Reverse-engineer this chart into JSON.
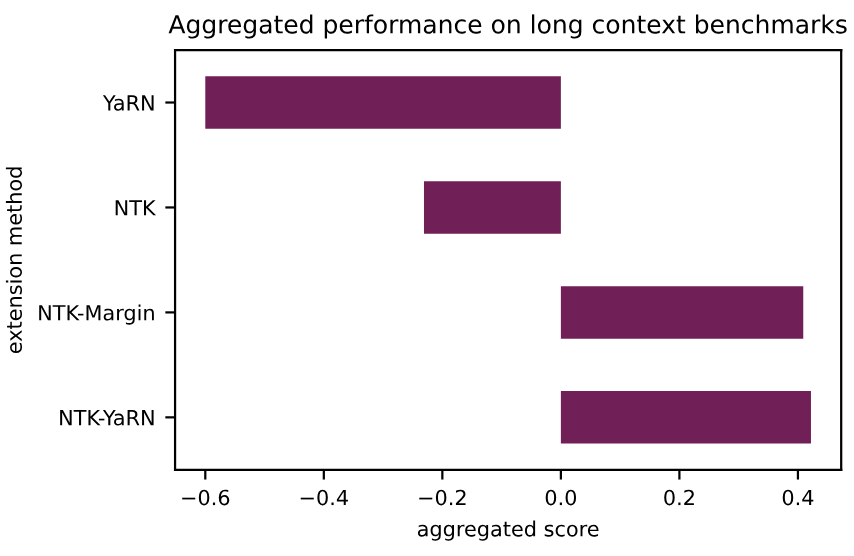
{
  "chart_data": {
    "type": "bar",
    "orientation": "horizontal",
    "title": "Aggregated performance on long context benchmarks",
    "xlabel": "aggregated score",
    "ylabel": "extension method",
    "categories": [
      "YaRN",
      "NTK",
      "NTK-Margin",
      "NTK-YaRN"
    ],
    "series": [
      {
        "color": "#701f57",
        "values": [
          -0.6,
          -0.231,
          0.409,
          0.422
        ]
      }
    ],
    "xlim": [
      -0.651,
      0.473
    ],
    "xticks": [
      {
        "value": -0.6,
        "label": "−0.6"
      },
      {
        "value": -0.4,
        "label": "−0.4"
      },
      {
        "value": -0.2,
        "label": "−0.2"
      },
      {
        "value": 0.0,
        "label": "0.0"
      },
      {
        "value": 0.2,
        "label": "0.2"
      },
      {
        "value": 0.4,
        "label": "0.4"
      }
    ],
    "grid": false,
    "legend": false
  }
}
